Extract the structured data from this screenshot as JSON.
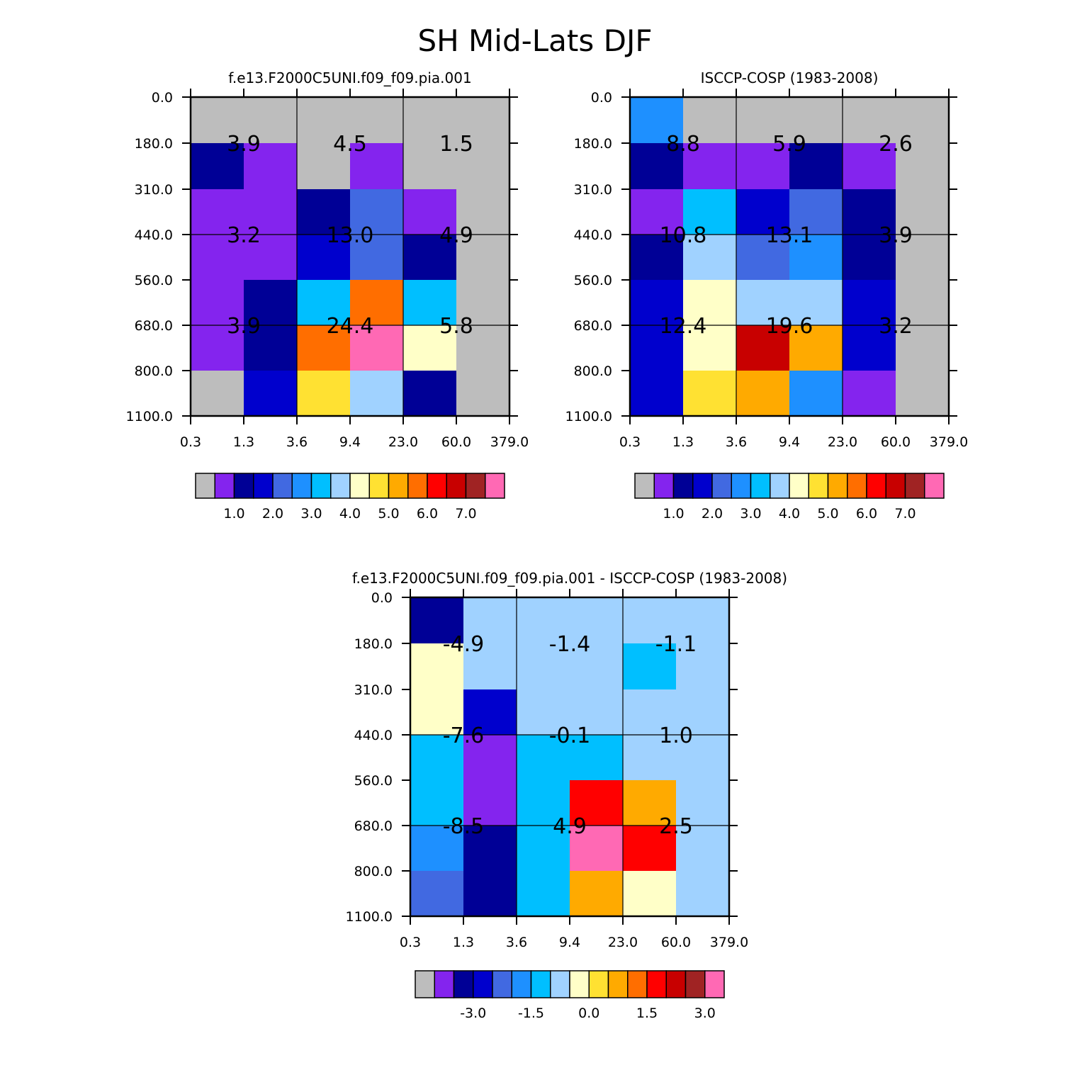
{
  "title": "SH Mid-Lats DJF",
  "chart_data": [
    {
      "type": "heatmap",
      "title": "f.e13.F2000C5UNI.f09_f09.pia.001",
      "xlabel": "",
      "ylabel": "",
      "x_ticks": [
        "0.3",
        "1.3",
        "3.6",
        "9.4",
        "23.0",
        "60.0",
        "379.0"
      ],
      "y_ticks": [
        "0.0",
        "180.0",
        "310.0",
        "440.0",
        "560.0",
        "680.0",
        "800.0",
        "1100.0"
      ],
      "cells": [
        [
          0,
          0,
          0,
          0,
          0,
          0
        ],
        [
          2,
          1,
          0,
          1,
          0,
          0
        ],
        [
          1,
          1,
          2,
          4,
          1,
          0
        ],
        [
          1,
          1,
          3,
          4,
          2,
          0
        ],
        [
          1,
          2,
          6,
          11,
          6,
          0
        ],
        [
          1,
          2,
          11,
          15,
          8,
          0
        ],
        [
          0,
          3,
          9,
          7,
          2,
          0
        ]
      ],
      "group_labels": [
        [
          "3.9",
          "4.5",
          "1.5"
        ],
        [
          "3.2",
          "13.0",
          "4.9"
        ],
        [
          "3.9",
          "24.4",
          "5.8"
        ]
      ],
      "colorbar": {
        "colors": [
          "#bdbdbd",
          "#8424ee",
          "#000096",
          "#0000cd",
          "#4169e1",
          "#1e90ff",
          "#00bfff",
          "#a0d2ff",
          "#ffffc8",
          "#ffe132",
          "#ffaa00",
          "#ff6e00",
          "#ff0000",
          "#c80000",
          "#a02323",
          "#ff69b4"
        ],
        "labels": [
          "1.0",
          "2.0",
          "3.0",
          "4.0",
          "5.0",
          "6.0",
          "7.0"
        ]
      }
    },
    {
      "type": "heatmap",
      "title": "ISCCP-COSP (1983-2008)",
      "xlabel": "",
      "ylabel": "",
      "x_ticks": [
        "0.3",
        "1.3",
        "3.6",
        "9.4",
        "23.0",
        "60.0",
        "379.0"
      ],
      "y_ticks": [
        "0.0",
        "180.0",
        "310.0",
        "440.0",
        "560.0",
        "680.0",
        "800.0",
        "1100.0"
      ],
      "cells": [
        [
          5,
          0,
          0,
          0,
          0,
          0
        ],
        [
          2,
          1,
          1,
          2,
          1,
          0
        ],
        [
          1,
          6,
          3,
          4,
          2,
          0
        ],
        [
          2,
          7,
          4,
          5,
          2,
          0
        ],
        [
          3,
          8,
          7,
          7,
          3,
          0
        ],
        [
          3,
          8,
          13,
          10,
          3,
          0
        ],
        [
          3,
          9,
          10,
          5,
          1,
          0
        ]
      ],
      "group_labels": [
        [
          "8.8",
          "5.9",
          "2.6"
        ],
        [
          "10.8",
          "13.1",
          "3.9"
        ],
        [
          "12.4",
          "19.6",
          "3.2"
        ]
      ],
      "colorbar": {
        "colors": [
          "#bdbdbd",
          "#8424ee",
          "#000096",
          "#0000cd",
          "#4169e1",
          "#1e90ff",
          "#00bfff",
          "#a0d2ff",
          "#ffffc8",
          "#ffe132",
          "#ffaa00",
          "#ff6e00",
          "#ff0000",
          "#c80000",
          "#a02323",
          "#ff69b4"
        ],
        "labels": [
          "1.0",
          "2.0",
          "3.0",
          "4.0",
          "5.0",
          "6.0",
          "7.0"
        ]
      }
    },
    {
      "type": "heatmap",
      "title": "f.e13.F2000C5UNI.f09_f09.pia.001 - ISCCP-COSP (1983-2008)",
      "xlabel": "",
      "ylabel": "",
      "x_ticks": [
        "0.3",
        "1.3",
        "3.6",
        "9.4",
        "23.0",
        "60.0",
        "379.0"
      ],
      "y_ticks": [
        "0.0",
        "180.0",
        "310.0",
        "440.0",
        "560.0",
        "680.0",
        "800.0",
        "1100.0"
      ],
      "cells": [
        [
          2,
          7,
          7,
          7,
          7,
          7
        ],
        [
          8,
          7,
          7,
          7,
          6,
          7
        ],
        [
          8,
          3,
          7,
          7,
          7,
          7
        ],
        [
          6,
          1,
          6,
          6,
          7,
          7
        ],
        [
          6,
          1,
          6,
          12,
          10,
          7
        ],
        [
          5,
          2,
          6,
          15,
          12,
          7
        ],
        [
          4,
          2,
          6,
          10,
          8,
          7
        ]
      ],
      "group_labels": [
        [
          "-4.9",
          "-1.4",
          "-1.1"
        ],
        [
          "-7.6",
          "-0.1",
          "1.0"
        ],
        [
          "-8.5",
          "4.9",
          "2.5"
        ]
      ],
      "colorbar": {
        "colors": [
          "#bdbdbd",
          "#8424ee",
          "#000096",
          "#0000cd",
          "#4169e1",
          "#1e90ff",
          "#00bfff",
          "#a0d2ff",
          "#ffffc8",
          "#ffe132",
          "#ffaa00",
          "#ff6e00",
          "#ff0000",
          "#c80000",
          "#a02323",
          "#ff69b4"
        ],
        "labels": [
          "-3.0",
          "-1.5",
          "0.0",
          "1.5",
          "3.0"
        ]
      }
    }
  ]
}
